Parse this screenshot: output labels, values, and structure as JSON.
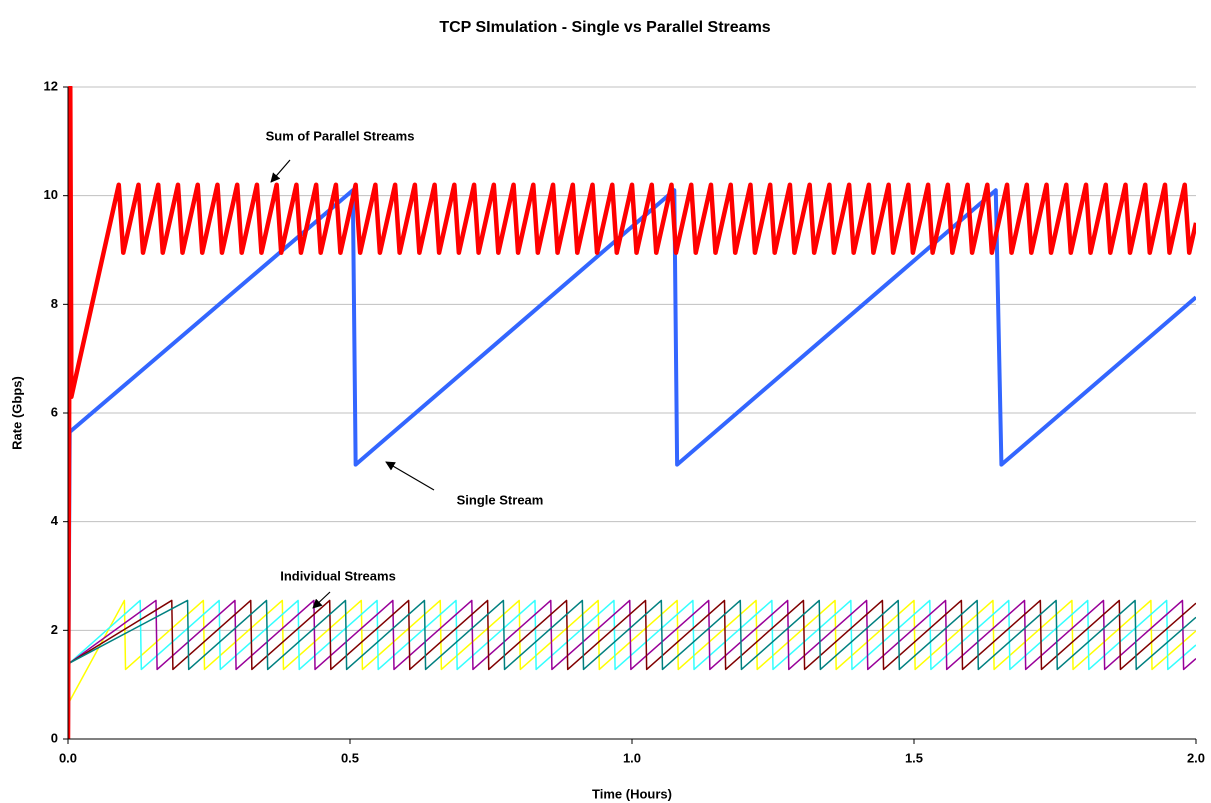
{
  "chart_data": {
    "type": "line",
    "title": "TCP SImulation - Single vs Parallel Streams",
    "x_label": "Time (Hours)",
    "y_label": "Rate (Gbps)",
    "xlim": [
      0,
      2
    ],
    "ylim": [
      0,
      12
    ],
    "xticks": [
      {
        "value": 0,
        "label": "0.0"
      },
      {
        "value": 0.5,
        "label": "0.5"
      },
      {
        "value": 1,
        "label": "1.0"
      },
      {
        "value": 1.5,
        "label": "1.5"
      },
      {
        "value": 2,
        "label": "2.0"
      }
    ],
    "yticks": [
      0,
      2,
      4,
      6,
      8,
      10,
      12
    ],
    "grid": true,
    "annotations": [
      "Sum of Parallel Streams",
      "Single Stream",
      "Individual Streams"
    ],
    "series": [
      {
        "color": "#ffff00",
        "width": 1.5,
        "x": [
          0.003,
          0.1,
          0.102,
          0.24,
          0.242,
          0.38,
          0.382,
          0.52,
          0.522,
          0.66,
          0.662,
          0.8,
          0.802,
          0.94,
          0.942,
          1.08,
          1.082,
          1.22,
          1.222,
          1.36,
          1.362,
          1.5,
          1.502,
          1.64,
          1.642,
          1.78,
          1.782,
          1.92,
          1.922,
          2.0
        ],
        "values": [
          0.7,
          2.55,
          1.28,
          2.55,
          1.28,
          2.55,
          1.28,
          2.55,
          1.28,
          2.55,
          1.28,
          2.55,
          1.28,
          2.55,
          1.28,
          2.55,
          1.28,
          2.55,
          1.28,
          2.55,
          1.28,
          2.55,
          1.28,
          2.55,
          1.28,
          2.55,
          1.28,
          2.55,
          1.28,
          1.99
        ]
      },
      {
        "color": "#33ffff",
        "width": 1.5,
        "x": [
          0.003,
          0.128,
          0.13,
          0.268,
          0.27,
          0.408,
          0.41,
          0.548,
          0.55,
          0.688,
          0.69,
          0.828,
          0.83,
          0.968,
          0.97,
          1.108,
          1.11,
          1.248,
          1.25,
          1.388,
          1.39,
          1.528,
          1.53,
          1.668,
          1.67,
          1.808,
          1.81,
          1.948,
          1.95,
          2.0
        ],
        "values": [
          1.4,
          2.55,
          1.28,
          2.55,
          1.28,
          2.55,
          1.28,
          2.55,
          1.28,
          2.55,
          1.28,
          2.55,
          1.28,
          2.55,
          1.28,
          2.55,
          1.28,
          2.55,
          1.28,
          2.55,
          1.28,
          2.55,
          1.28,
          2.55,
          1.28,
          2.55,
          1.28,
          2.55,
          1.28,
          1.73
        ]
      },
      {
        "color": "#990099",
        "width": 1.5,
        "x": [
          0.003,
          0.156,
          0.158,
          0.296,
          0.298,
          0.436,
          0.438,
          0.576,
          0.578,
          0.716,
          0.718,
          0.856,
          0.858,
          0.996,
          0.998,
          1.136,
          1.138,
          1.276,
          1.278,
          1.416,
          1.418,
          1.556,
          1.558,
          1.696,
          1.698,
          1.836,
          1.838,
          1.976,
          1.978,
          2.0
        ],
        "values": [
          1.4,
          2.55,
          1.28,
          2.55,
          1.28,
          2.55,
          1.28,
          2.55,
          1.28,
          2.55,
          1.28,
          2.55,
          1.28,
          2.55,
          1.28,
          2.55,
          1.28,
          2.55,
          1.28,
          2.55,
          1.28,
          2.55,
          1.28,
          2.55,
          1.28,
          2.55,
          1.28,
          2.55,
          1.28,
          1.48
        ]
      },
      {
        "color": "#800000",
        "width": 1.5,
        "x": [
          0.003,
          0.184,
          0.186,
          0.324,
          0.326,
          0.464,
          0.466,
          0.604,
          0.606,
          0.744,
          0.746,
          0.884,
          0.886,
          1.024,
          1.026,
          1.164,
          1.166,
          1.304,
          1.306,
          1.444,
          1.446,
          1.584,
          1.586,
          1.724,
          1.726,
          1.864,
          1.866,
          2.0
        ],
        "values": [
          1.4,
          2.55,
          1.28,
          2.55,
          1.28,
          2.55,
          1.28,
          2.55,
          1.28,
          2.55,
          1.28,
          2.55,
          1.28,
          2.55,
          1.28,
          2.55,
          1.28,
          2.55,
          1.28,
          2.55,
          1.28,
          2.55,
          1.28,
          2.55,
          1.28,
          2.55,
          1.28,
          2.5
        ]
      },
      {
        "color": "#008080",
        "width": 1.5,
        "x": [
          0.003,
          0.212,
          0.214,
          0.352,
          0.354,
          0.492,
          0.494,
          0.632,
          0.634,
          0.772,
          0.774,
          0.912,
          0.914,
          1.052,
          1.054,
          1.192,
          1.194,
          1.332,
          1.334,
          1.472,
          1.474,
          1.612,
          1.614,
          1.752,
          1.754,
          1.892,
          1.894,
          2.0
        ],
        "values": [
          1.4,
          2.55,
          1.28,
          2.55,
          1.28,
          2.55,
          1.28,
          2.55,
          1.28,
          2.55,
          1.28,
          2.55,
          1.28,
          2.55,
          1.28,
          2.55,
          1.28,
          2.55,
          1.28,
          2.55,
          1.28,
          2.55,
          1.28,
          2.55,
          1.28,
          2.55,
          1.28,
          2.24
        ]
      },
      {
        "color": "#3366ff",
        "width": 4,
        "x": [
          0,
          0.003,
          0.505,
          0.51,
          1.075,
          1.08,
          1.645,
          1.655,
          2.0
        ],
        "values": [
          0,
          5.65,
          10.1,
          5.05,
          10.1,
          5.05,
          10.1,
          5.05,
          8.13
        ]
      },
      {
        "color": "#ff0000",
        "width": 4.5,
        "x": [
          0,
          0.004,
          0.006,
          0.09,
          0.098,
          0.125,
          0.133,
          0.16,
          0.168,
          0.195,
          0.203,
          0.23,
          0.238,
          0.265,
          0.273,
          0.3,
          0.308,
          0.335,
          0.343,
          0.37,
          0.378,
          0.405,
          0.413,
          0.44,
          0.448,
          0.475,
          0.483,
          0.51,
          0.518,
          0.545,
          0.553,
          0.58,
          0.588,
          0.615,
          0.623,
          0.65,
          0.658,
          0.685,
          0.693,
          0.72,
          0.728,
          0.755,
          0.763,
          0.79,
          0.798,
          0.825,
          0.833,
          0.86,
          0.868,
          0.895,
          0.903,
          0.93,
          0.938,
          0.965,
          0.973,
          1.0,
          1.008,
          1.035,
          1.043,
          1.07,
          1.078,
          1.105,
          1.113,
          1.14,
          1.148,
          1.175,
          1.183,
          1.21,
          1.218,
          1.245,
          1.253,
          1.28,
          1.288,
          1.315,
          1.323,
          1.35,
          1.358,
          1.385,
          1.393,
          1.42,
          1.428,
          1.455,
          1.463,
          1.49,
          1.498,
          1.525,
          1.533,
          1.56,
          1.568,
          1.595,
          1.603,
          1.63,
          1.638,
          1.665,
          1.673,
          1.7,
          1.708,
          1.735,
          1.743,
          1.77,
          1.778,
          1.805,
          1.813,
          1.84,
          1.848,
          1.875,
          1.883,
          1.91,
          1.918,
          1.945,
          1.953,
          1.98,
          1.988,
          2.0
        ],
        "values": [
          0,
          12,
          6.3,
          10.2,
          8.95,
          10.2,
          8.95,
          10.2,
          8.95,
          10.2,
          8.95,
          10.2,
          8.95,
          10.2,
          8.95,
          10.2,
          8.95,
          10.2,
          8.95,
          10.2,
          8.95,
          10.2,
          8.95,
          10.2,
          8.95,
          10.2,
          8.95,
          10.2,
          8.95,
          10.2,
          8.95,
          10.2,
          8.95,
          10.2,
          8.95,
          10.2,
          8.95,
          10.2,
          8.95,
          10.2,
          8.95,
          10.2,
          8.95,
          10.2,
          8.95,
          10.2,
          8.95,
          10.2,
          8.95,
          10.2,
          8.95,
          10.2,
          8.95,
          10.2,
          8.95,
          10.2,
          8.95,
          10.2,
          8.95,
          10.2,
          8.95,
          10.2,
          8.95,
          10.2,
          8.95,
          10.2,
          8.95,
          10.2,
          8.95,
          10.2,
          8.95,
          10.2,
          8.95,
          10.2,
          8.95,
          10.2,
          8.95,
          10.2,
          8.95,
          10.2,
          8.95,
          10.2,
          8.95,
          10.2,
          8.95,
          10.2,
          8.95,
          10.2,
          8.95,
          10.2,
          8.95,
          10.2,
          8.95,
          10.2,
          8.95,
          10.2,
          8.95,
          10.2,
          8.95,
          10.2,
          8.95,
          10.2,
          8.95,
          10.2,
          8.95,
          10.2,
          8.95,
          10.2,
          8.95,
          10.2,
          8.95,
          10.2,
          8.95,
          9.5
        ]
      }
    ]
  }
}
